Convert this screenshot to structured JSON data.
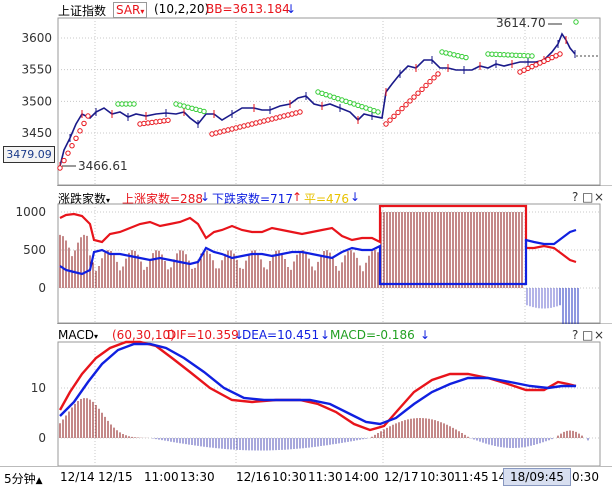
{
  "colors": {
    "red": "#e8141b",
    "blue": "#1020e0",
    "green": "#22b822",
    "sar_red": "#e8141b",
    "sar_green": "#33cc33",
    "purple": "#8a1010",
    "grid": "#c8c8c8",
    "axis_bg": "#ffffff"
  },
  "pane1": {
    "title": "上证指数",
    "indicator_select": "SAR",
    "params": "(10,2,20)",
    "bb_label": "BB=3613.184",
    "y_ticks": [
      "3600",
      "3550",
      "3500",
      "3450"
    ],
    "current_price": "3479.09",
    "high_label": "3614.70",
    "low_label": "3466.61"
  },
  "pane2": {
    "title": "涨跌家数",
    "up_label": "上涨家数=288",
    "down_label": "下跌家数=717",
    "diff_label": "平=476",
    "y_ticks": [
      "1000",
      "500",
      "0"
    ],
    "tools": [
      "?",
      "□",
      "×"
    ]
  },
  "pane3": {
    "title": "MACD",
    "params": "(60,30,10)",
    "dif_label": "DIF=10.359",
    "dea_label": "DEA=10.451",
    "macd_label": "MACD=-0.186",
    "y_ticks": [
      "10",
      "0"
    ],
    "tools": [
      "?",
      "□",
      "×"
    ]
  },
  "timebar": {
    "period": "5分钟",
    "labels": [
      "12/14",
      "12/15",
      "11:00",
      "13:30",
      "12/16",
      "10:30",
      "11:30",
      "14:00",
      "12/17",
      "10:30",
      "11:45",
      "14",
      "0:30"
    ],
    "cursor_time": "18/09:45"
  }
}
